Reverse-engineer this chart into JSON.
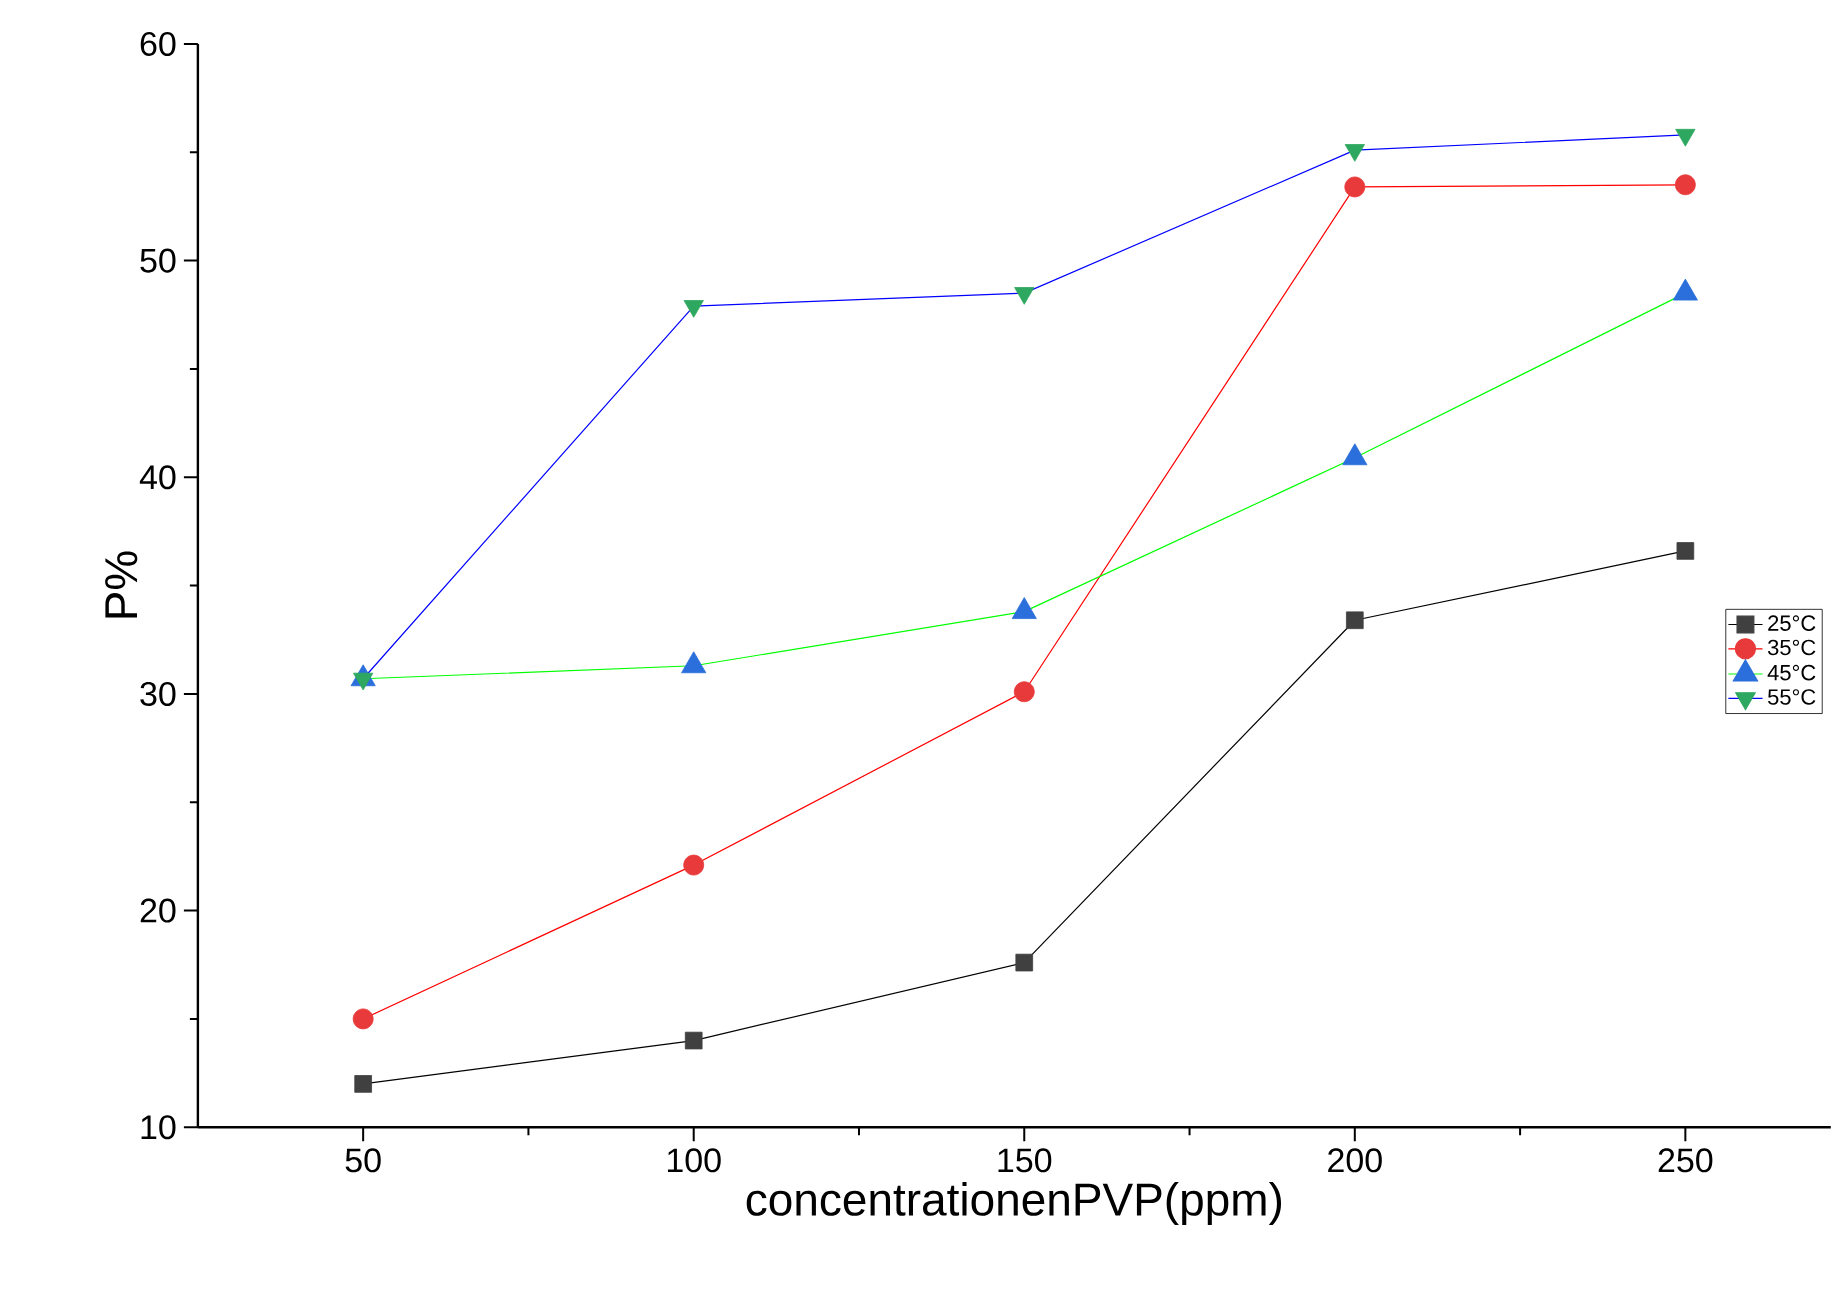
{
  "chart_data": {
    "type": "line",
    "xlabel": "concentrationenPVP(ppm)",
    "ylabel": "P%",
    "x": [
      50,
      100,
      150,
      200,
      250
    ],
    "series": [
      {
        "name": "25°C",
        "color": "#000000",
        "colors": [
          "#404040",
          "#404040",
          "#404040",
          "#404040",
          "#404040"
        ],
        "marker": "square",
        "values": [
          12,
          14,
          17.6,
          33.4,
          36.6
        ]
      },
      {
        "name": "35°C",
        "color": "#ff0000",
        "colors": [
          "#e83a3a",
          "#e83a3a",
          "#e83a3a",
          "#e83a3a",
          "#e83a3a"
        ],
        "marker": "circle",
        "values": [
          15,
          22.1,
          30.1,
          53.4,
          53.5
        ]
      },
      {
        "name": "45°C",
        "color": "#00ff00",
        "colors": [
          "#2a6fdb",
          "#2a6fdb",
          "#2a6fdb",
          "#2a6fdb",
          "#2a6fdb"
        ],
        "marker": "triangle",
        "values": [
          30.7,
          31.3,
          33.8,
          40.9,
          48.5
        ]
      },
      {
        "name": "55°C",
        "color": "#0000ff",
        "colors": [
          "#2ea860",
          "#2ea860",
          "#2ea860",
          "#2ea860",
          "#2ea860"
        ],
        "marker": "triangle-down",
        "values": [
          30.7,
          47.9,
          48.5,
          55.1,
          55.8
        ]
      }
    ],
    "xlim": [
      25,
      272
    ],
    "ylim": [
      10,
      60
    ],
    "xticks": [
      50,
      100,
      150,
      200,
      250
    ],
    "yticks": [
      10,
      20,
      30,
      40,
      50,
      60
    ],
    "grid": false,
    "legend": "right",
    "line_style": "solid"
  }
}
